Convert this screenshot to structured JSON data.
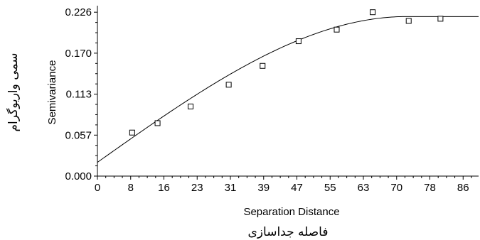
{
  "chart_data": {
    "type": "scatter",
    "xlabel": "Separation Distance",
    "xlabel_fa": "فاصله جداسازی",
    "ylabel": "Semivariance",
    "ylabel_fa": "سمی واریوگرام",
    "xlim": [
      0,
      90
    ],
    "ylim": [
      0,
      0.235
    ],
    "x_ticks": [
      "0",
      "8",
      "16",
      "23",
      "31",
      "39",
      "47",
      "55",
      "63",
      "70",
      "78",
      "86"
    ],
    "x_tick_values": [
      0,
      7.85,
      15.7,
      23.55,
      31.4,
      39.25,
      47.1,
      54.95,
      62.8,
      70.65,
      78.5,
      86.35
    ],
    "y_ticks": [
      "0.000",
      "0.057",
      "0.113",
      "0.170",
      "0.226"
    ],
    "y_tick_values": [
      0,
      0.0565,
      0.113,
      0.1695,
      0.226
    ],
    "points": {
      "x": [
        8.2,
        14.2,
        22.0,
        31.0,
        39.0,
        47.5,
        56.5,
        65.0,
        73.5,
        81.0
      ],
      "y": [
        0.06,
        0.073,
        0.096,
        0.126,
        0.152,
        0.186,
        0.202,
        0.226,
        0.214,
        0.217
      ]
    },
    "model": {
      "type": "spherical",
      "nugget": 0.019,
      "sill": 0.22,
      "range": 73
    },
    "grid": false,
    "legend": "none"
  },
  "colors": {
    "axis": "#000000",
    "points": "#000000",
    "curve": "#000000"
  }
}
